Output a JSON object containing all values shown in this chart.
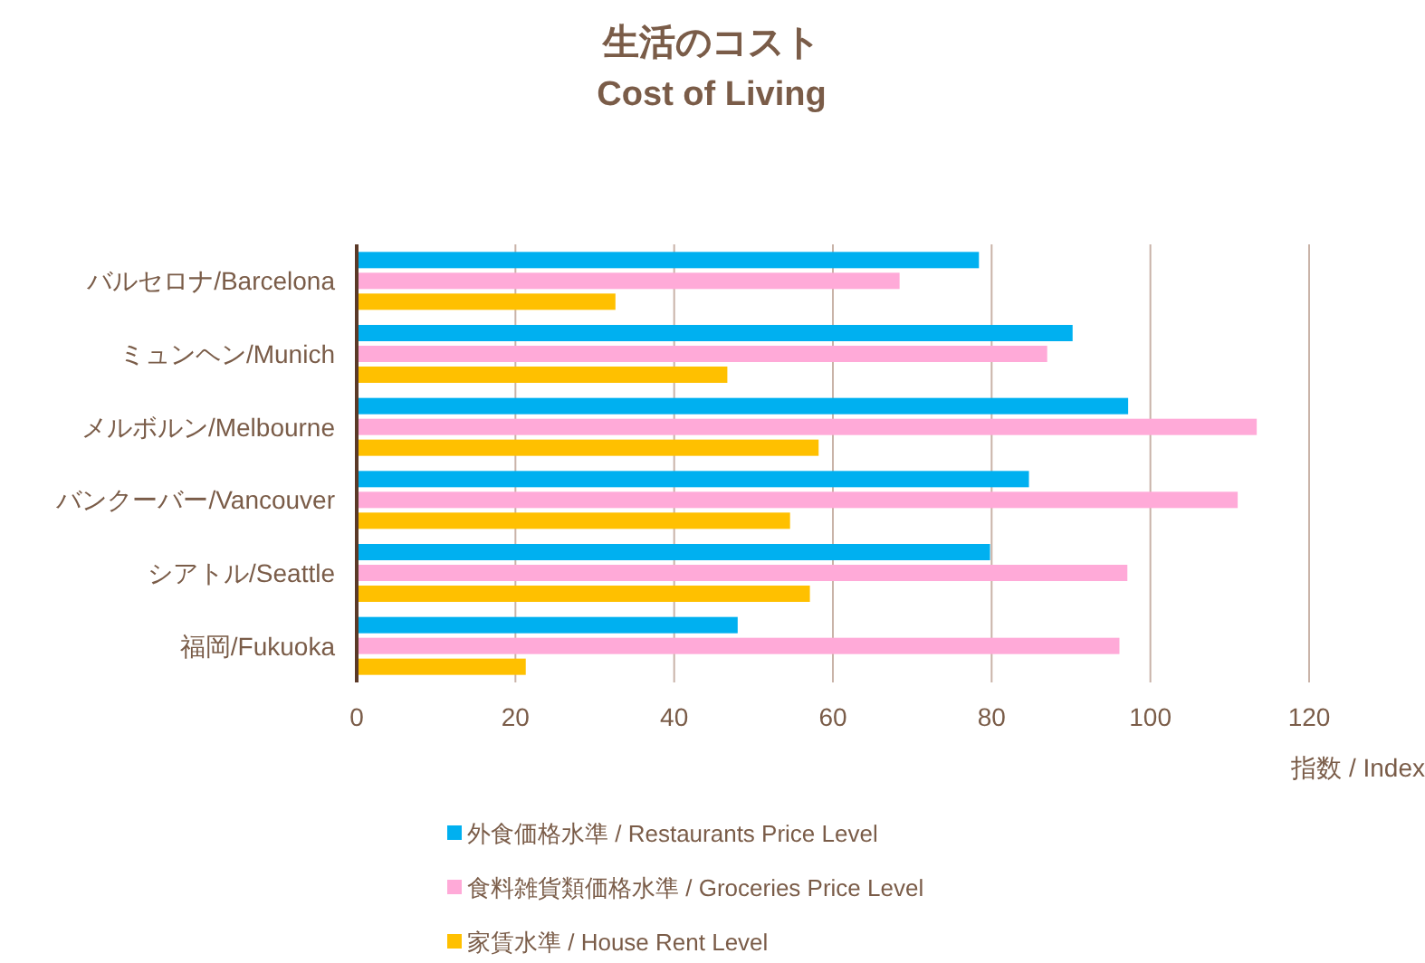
{
  "chart_data": {
    "type": "bar",
    "orientation": "horizontal",
    "title": "生活のコスト",
    "subtitle": "Cost of Living",
    "xlabel": "指数 / Index",
    "categories": [
      "バルセロナ/Barcelona",
      "ミュンヘン/Munich",
      "メルボルン/Melbourne",
      "バンクーバー/Vancouver",
      "シアトル/Seattle",
      "福岡/Fukuoka"
    ],
    "series": [
      {
        "name": "外食価格水準 / Restaurants Price Level",
        "color": "#00b0f0",
        "values": [
          78.4,
          90.2,
          97.2,
          84.7,
          79.8,
          48.0
        ]
      },
      {
        "name": "食料雑貨類価格水準 / Groceries Price Level",
        "color": "#ffaad8",
        "values": [
          68.4,
          87.0,
          113.4,
          111.0,
          97.1,
          96.1
        ]
      },
      {
        "name": "家賃水準 / House Rent Level",
        "color": "#ffc000",
        "values": [
          32.6,
          46.7,
          58.2,
          54.6,
          57.1,
          21.3
        ]
      }
    ],
    "xlim": [
      0,
      120
    ],
    "xticks": [
      0,
      20,
      40,
      60,
      80,
      100,
      120
    ],
    "grid": "x",
    "legend": "bottom"
  }
}
